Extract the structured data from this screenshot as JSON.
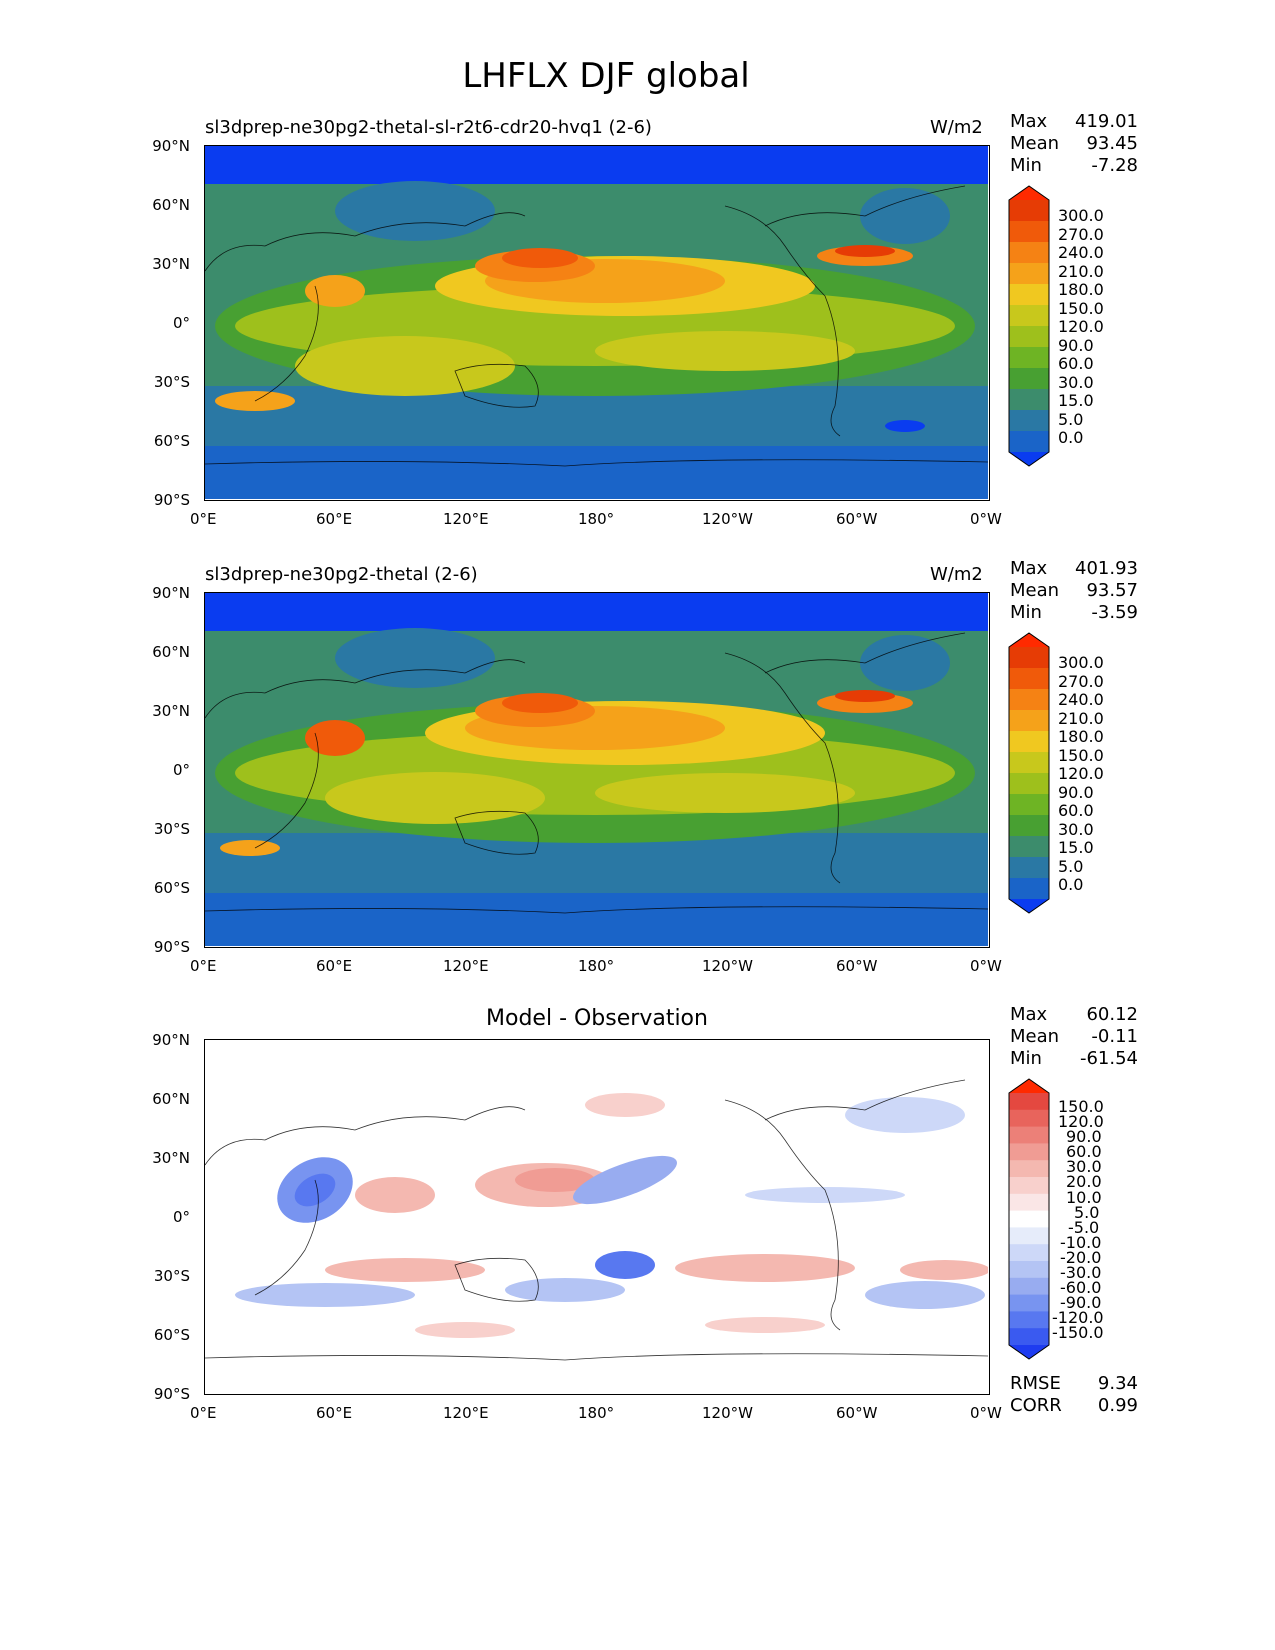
{
  "title": "LHFLX DJF global",
  "colors": {
    "mean_field": [
      "#0a3cf0",
      "#1a64c8",
      "#2a78a4",
      "#3c8c6c",
      "#48a032",
      "#6eb424",
      "#9ec01c",
      "#c8c81c",
      "#f0c820",
      "#f5a21a",
      "#f58214",
      "#f05a0a",
      "#e63c05",
      "#ff2a00"
    ],
    "diff": [
      "#1e3cf0",
      "#3a5af0",
      "#5878f0",
      "#7894f0",
      "#98acf0",
      "#b4c4f4",
      "#cdd8f8",
      "#e6ecfa",
      "#ffffff",
      "#fae6e6",
      "#f8d0cc",
      "#f4b8b0",
      "#f09c94",
      "#ec8078",
      "#e8645c",
      "#e44840",
      "#ff2a00"
    ]
  },
  "panels": [
    {
      "id": "test",
      "left_title": "sl3dprep-ne30pg2-thetal-sl-r2t6-cdr20-hvq1 (2-6)",
      "units": "W/m2",
      "stats": [
        {
          "label": "Max",
          "value": "419.01"
        },
        {
          "label": "Mean",
          "value": "93.45"
        },
        {
          "label": "Min",
          "value": "-7.28"
        }
      ],
      "colorbar_labels": [
        "300.0",
        "270.0",
        "240.0",
        "210.0",
        "180.0",
        "150.0",
        "120.0",
        "90.0",
        "60.0",
        "30.0",
        "15.0",
        "5.0",
        "0.0"
      ]
    },
    {
      "id": "reference",
      "left_title": "sl3dprep-ne30pg2-thetal (2-6)",
      "units": "W/m2",
      "stats": [
        {
          "label": "Max",
          "value": "401.93"
        },
        {
          "label": "Mean",
          "value": "93.57"
        },
        {
          "label": "Min",
          "value": "-3.59"
        }
      ],
      "colorbar_labels": [
        "300.0",
        "270.0",
        "240.0",
        "210.0",
        "180.0",
        "150.0",
        "120.0",
        "90.0",
        "60.0",
        "30.0",
        "15.0",
        "5.0",
        "0.0"
      ]
    },
    {
      "id": "difference",
      "center_title": "Model - Observation",
      "stats": [
        {
          "label": "Max",
          "value": "60.12"
        },
        {
          "label": "Mean",
          "value": "-0.11"
        },
        {
          "label": "Min",
          "value": "-61.54"
        }
      ],
      "colorbar_labels": [
        "150.0",
        "120.0",
        "90.0",
        "60.0",
        "30.0",
        "20.0",
        "10.0",
        "5.0",
        "-5.0",
        "-10.0",
        "-20.0",
        "-30.0",
        "-60.0",
        "-90.0",
        "-120.0",
        "-150.0"
      ],
      "metrics": [
        {
          "label": "RMSE",
          "value": "9.34"
        },
        {
          "label": "CORR",
          "value": "0.99"
        }
      ]
    }
  ],
  "lat_ticks": [
    "90°N",
    "60°N",
    "30°N",
    "0°",
    "30°S",
    "60°S",
    "90°S"
  ],
  "lon_ticks": [
    "0°E",
    "60°E",
    "120°E",
    "180°",
    "120°W",
    "60°W",
    "0°W"
  ]
}
